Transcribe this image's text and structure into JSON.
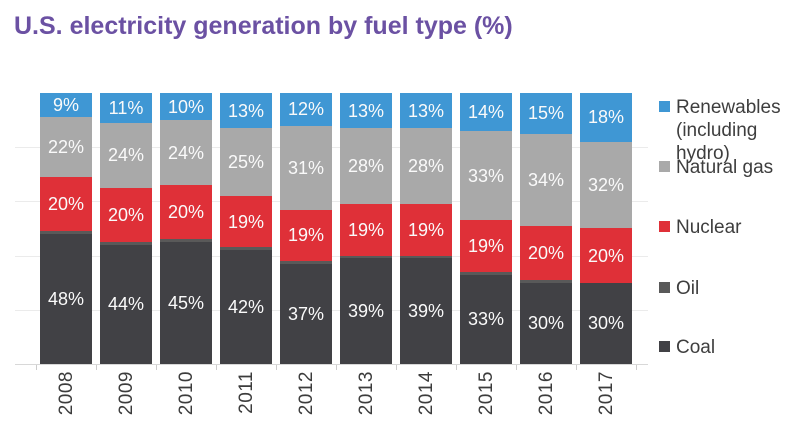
{
  "title": "U.S. electricity generation by fuel type (%)",
  "title_color": "#6B51A3",
  "chart_data": {
    "type": "bar",
    "stacked": true,
    "percentage_stacked": true,
    "stack_order": "top-to-bottom",
    "title": "U.S. electricity generation by fuel type (%)",
    "categories": [
      "2008",
      "2009",
      "2010",
      "2011",
      "2012",
      "2013",
      "2014",
      "2015",
      "2016",
      "2017"
    ],
    "value_suffix": "%",
    "series": [
      {
        "id": "renewables",
        "name": "Renewables (including hydro)",
        "color": "#3F97D4",
        "labeled": true,
        "values": [
          9,
          11,
          10,
          13,
          12,
          13,
          13,
          14,
          15,
          18
        ]
      },
      {
        "id": "natural_gas",
        "name": "Natural gas",
        "color": "#A9A9A9",
        "labeled": true,
        "values": [
          22,
          24,
          24,
          25,
          31,
          28,
          28,
          33,
          34,
          32
        ]
      },
      {
        "id": "nuclear",
        "name": "Nuclear",
        "color": "#DF3038",
        "labeled": true,
        "values": [
          20,
          20,
          20,
          19,
          19,
          19,
          19,
          19,
          20,
          20
        ]
      },
      {
        "id": "oil",
        "name": "Oil",
        "color": "#595959",
        "labeled": false,
        "values": [
          1,
          1,
          1,
          1,
          1,
          1,
          1,
          1,
          1,
          0
        ]
      },
      {
        "id": "coal",
        "name": "Coal",
        "color": "#414145",
        "labeled": true,
        "values": [
          48,
          44,
          45,
          42,
          37,
          39,
          39,
          33,
          30,
          30
        ]
      }
    ],
    "xlabel": "",
    "ylabel": "",
    "ylim": [
      0,
      100
    ],
    "grid": "horizontal gridlines every 20%, no y tick labels",
    "legend_position": "right",
    "bar_label_color": "#FAFAFA",
    "axis_label_color": "#3C3C3C"
  },
  "legend": {
    "items": [
      {
        "label": "Renewables (including hydro)",
        "color": "#3F97D4"
      },
      {
        "label": "Natural gas",
        "color": "#A9A9A9"
      },
      {
        "label": "Nuclear",
        "color": "#DF3038"
      },
      {
        "label": "Oil",
        "color": "#595959"
      },
      {
        "label": "Coal",
        "color": "#414145"
      }
    ]
  }
}
